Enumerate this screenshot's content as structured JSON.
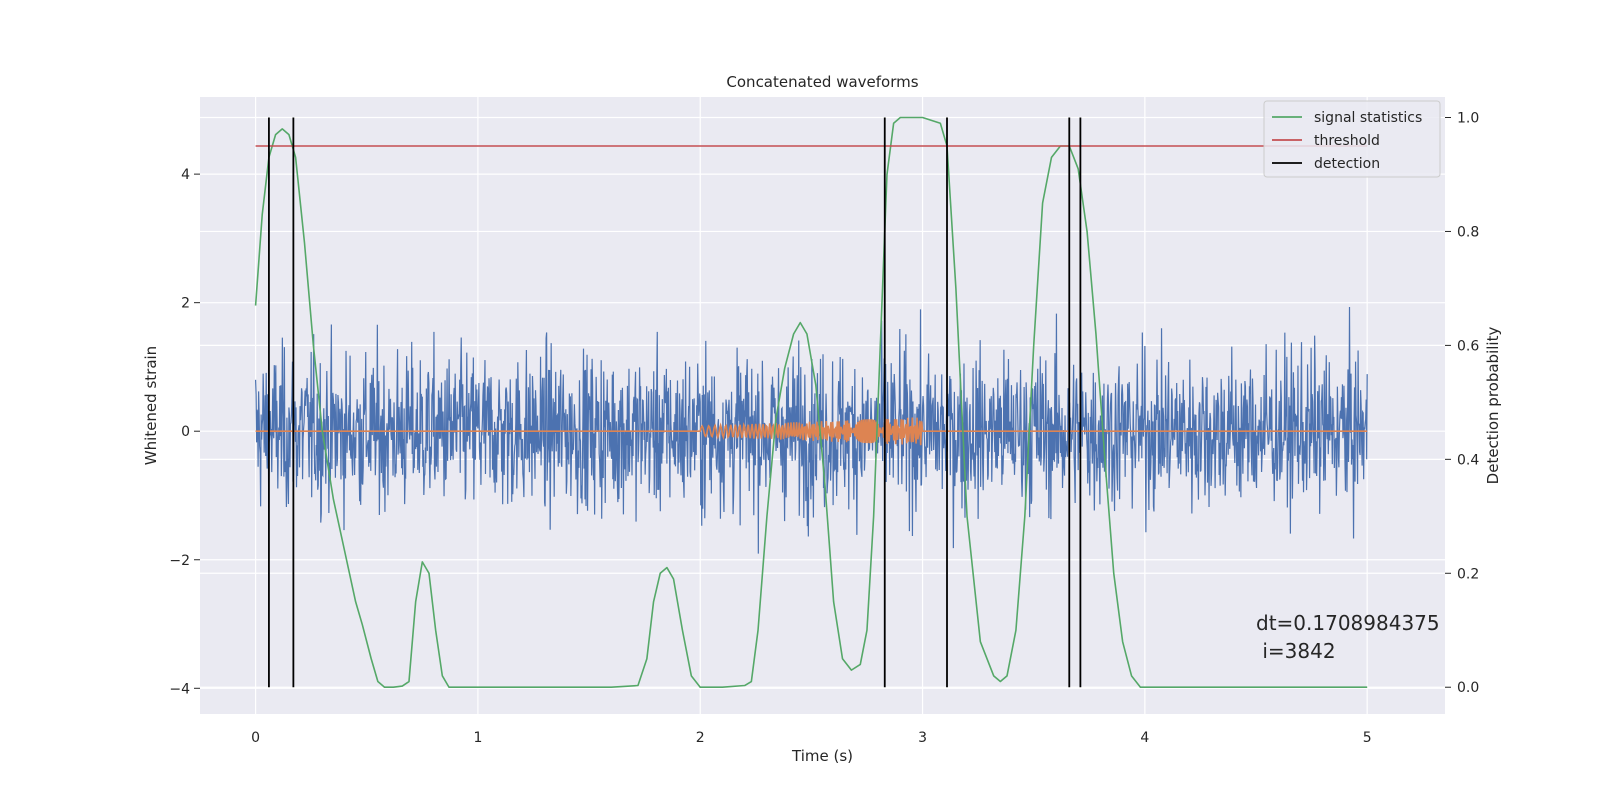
{
  "chart_data": {
    "type": "line",
    "title": "Concatenated waveforms",
    "xlabel": "Time (s)",
    "ylabel": "Whitened strain",
    "ylabel_right": "Detection probability",
    "xlim": [
      -0.25,
      5.35
    ],
    "ylim": [
      -4.4,
      5.2
    ],
    "ylim_right": [
      -0.047,
      1.036
    ],
    "x_ticks": [
      0,
      1,
      2,
      3,
      4,
      5
    ],
    "y_ticks": [
      -4,
      -2,
      0,
      2,
      4
    ],
    "y_ticks_right": [
      0.0,
      0.2,
      0.4,
      0.6,
      0.8,
      1.0
    ],
    "x_tick_labels": [
      "0",
      "1",
      "2",
      "3",
      "4",
      "5"
    ],
    "y_tick_labels": [
      "−4",
      "−2",
      "0",
      "2",
      "4"
    ],
    "y_tick_labels_right": [
      "0.0",
      "0.2",
      "0.4",
      "0.6",
      "0.8",
      "1.0"
    ],
    "grid": true,
    "legend_position": "top-right",
    "colors": {
      "background": "#eaeaf2",
      "grid": "#ffffff",
      "strain": "#4c72b0",
      "injected": "#dd8452",
      "signal_statistics": "#55a868",
      "threshold": "#c44e52",
      "detection": "#000000"
    },
    "series": [
      {
        "name": "strain",
        "axis": "left",
        "x_range": [
          0,
          5
        ],
        "envelope_typical": [
          -1.3,
          1.3
        ],
        "envelope_extremes": [
          -3.9,
          3.7
        ]
      },
      {
        "name": "injected waveform",
        "axis": "left",
        "x_range": [
          0,
          5
        ],
        "chirp_start": 2.0,
        "chirp_end": 3.0,
        "amplitude_start": 0.08,
        "amplitude_end": 0.22
      },
      {
        "name": "signal statistics",
        "axis": "right",
        "x": [
          0.0,
          0.03,
          0.06,
          0.09,
          0.12,
          0.15,
          0.18,
          0.22,
          0.26,
          0.3,
          0.35,
          0.4,
          0.45,
          0.48,
          0.52,
          0.55,
          0.58,
          0.62,
          0.66,
          0.69,
          0.72,
          0.75,
          0.78,
          0.81,
          0.84,
          0.87,
          0.9,
          1.0,
          1.2,
          1.4,
          1.6,
          1.72,
          1.76,
          1.79,
          1.82,
          1.85,
          1.88,
          1.92,
          1.96,
          2.0,
          2.1,
          2.2,
          2.23,
          2.26,
          2.3,
          2.34,
          2.38,
          2.42,
          2.45,
          2.48,
          2.52,
          2.56,
          2.6,
          2.64,
          2.68,
          2.72,
          2.75,
          2.78,
          2.81,
          2.84,
          2.87,
          2.9,
          3.0,
          3.08,
          3.11,
          3.15,
          3.2,
          3.26,
          3.32,
          3.35,
          3.38,
          3.42,
          3.46,
          3.5,
          3.54,
          3.58,
          3.62,
          3.66,
          3.7,
          3.74,
          3.78,
          3.82,
          3.86,
          3.9,
          3.94,
          3.98,
          4.1,
          4.5,
          5.0
        ],
        "values": [
          0.67,
          0.83,
          0.93,
          0.97,
          0.98,
          0.97,
          0.93,
          0.78,
          0.6,
          0.45,
          0.33,
          0.24,
          0.15,
          0.11,
          0.05,
          0.01,
          0.0,
          0.0,
          0.002,
          0.01,
          0.15,
          0.22,
          0.2,
          0.1,
          0.02,
          0.0,
          0.0,
          0.0,
          0.0,
          0.0,
          0.0,
          0.003,
          0.05,
          0.15,
          0.2,
          0.21,
          0.19,
          0.1,
          0.02,
          0.0,
          0.0,
          0.003,
          0.01,
          0.1,
          0.3,
          0.47,
          0.56,
          0.62,
          0.64,
          0.62,
          0.53,
          0.36,
          0.15,
          0.05,
          0.03,
          0.04,
          0.1,
          0.3,
          0.6,
          0.9,
          0.99,
          1.0,
          1.0,
          0.99,
          0.95,
          0.7,
          0.3,
          0.08,
          0.02,
          0.01,
          0.02,
          0.1,
          0.3,
          0.6,
          0.85,
          0.93,
          0.95,
          0.95,
          0.91,
          0.8,
          0.62,
          0.4,
          0.2,
          0.08,
          0.02,
          0.0,
          0.0,
          0.0,
          0.0
        ]
      },
      {
        "name": "threshold",
        "axis": "right",
        "x": [
          0,
          5
        ],
        "values": [
          0.95,
          0.95
        ]
      },
      {
        "name": "detection",
        "axis": "right",
        "x": [
          0.06,
          0.17,
          2.83,
          3.11,
          3.66,
          3.71
        ],
        "y_range": [
          0.0,
          1.0
        ]
      }
    ],
    "legend": [
      "signal statistics",
      "threshold",
      "detection"
    ],
    "annotation_line1": "dt=0.1708984375",
    "annotation_line2": " i=3842"
  }
}
